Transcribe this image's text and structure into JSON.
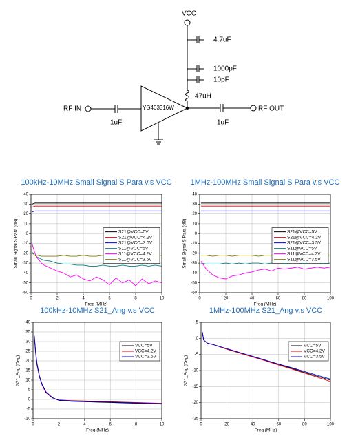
{
  "schematic": {
    "vcc": "VCC",
    "cap1": "4.7uF",
    "cap2": "1000pF",
    "cap3": "10pF",
    "inductor": "47uH",
    "rf_in": "RF IN",
    "cap_in": "1uF",
    "amp": "YG403316W",
    "cap_out": "1uF",
    "rf_out": "RF OUT"
  },
  "chart_data": [
    {
      "type": "line",
      "title": "100kHz-10MHz Small Signal S Para v.s VCC",
      "xlabel": "Freq (MHz)",
      "ylabel": "Small Signal S Para (dB)",
      "x": [
        0.1,
        0.3,
        0.5,
        0.8,
        1,
        1.5,
        2,
        2.5,
        3,
        3.5,
        4,
        4.5,
        5,
        5.5,
        6,
        6.5,
        7,
        7.5,
        8,
        8.5,
        9,
        9.5,
        10
      ],
      "series": [
        {
          "name": "S21@VCC=5V",
          "color": "#000000",
          "values": [
            30,
            31,
            31,
            31,
            31,
            31,
            31,
            31,
            31,
            31,
            31,
            31,
            31,
            31,
            31,
            31,
            31,
            31,
            31,
            31,
            31,
            31,
            31
          ]
        },
        {
          "name": "S21@VCC=4.2V",
          "color": "#e00000",
          "values": [
            27,
            28,
            28,
            28,
            28,
            28,
            28,
            28,
            28,
            28,
            28,
            28,
            28,
            28,
            28,
            28,
            28,
            28,
            28,
            28,
            28,
            28,
            28
          ]
        },
        {
          "name": "S21@VCC=3.5V",
          "color": "#0000e0",
          "values": [
            22,
            23,
            23,
            23,
            23,
            23,
            23,
            23,
            23,
            23,
            23,
            23,
            23,
            23,
            23,
            23,
            23,
            23,
            23,
            23,
            23,
            23,
            23
          ]
        },
        {
          "name": "S11@VCC=5V",
          "color": "#008080",
          "values": [
            -19,
            -22,
            -24,
            -26,
            -27,
            -28,
            -30,
            -31,
            -31,
            -32,
            -32,
            -33,
            -33,
            -32,
            -33,
            -33,
            -32,
            -33,
            -33,
            -32,
            -33,
            -32,
            -33
          ]
        },
        {
          "name": "S11@VCC=4.2V",
          "color": "#ff00ff",
          "values": [
            -11,
            -20,
            -25,
            -30,
            -32,
            -35,
            -38,
            -40,
            -44,
            -42,
            -46,
            -48,
            -44,
            -47,
            -52,
            -45,
            -50,
            -47,
            -53,
            -46,
            -51,
            -48,
            -50
          ]
        },
        {
          "name": "S11@VCC=3.5V",
          "color": "#808000",
          "values": [
            -20,
            -22,
            -22,
            -23,
            -23,
            -23,
            -23,
            -22,
            -23,
            -23,
            -22,
            -23,
            -23,
            -22,
            -23,
            -23,
            -22,
            -23,
            -23,
            -22,
            -23,
            -23,
            -22
          ]
        }
      ],
      "xlim": [
        0,
        10
      ],
      "ylim": [
        -60,
        40
      ],
      "xticks": [
        0,
        2,
        4,
        6,
        8,
        10
      ],
      "yticks": [
        -60,
        -50,
        -40,
        -30,
        -20,
        -10,
        0,
        10,
        20,
        30,
        40
      ],
      "grid": true,
      "legend": "center right"
    },
    {
      "type": "line",
      "title": "1MHz-100MHz Small Signal S Para v.s VCC",
      "xlabel": "Freq (MHz)",
      "ylabel": "Small Signal S Para (dB)",
      "x": [
        1,
        5,
        10,
        15,
        20,
        25,
        30,
        35,
        40,
        45,
        50,
        55,
        60,
        65,
        70,
        75,
        80,
        85,
        90,
        95,
        100
      ],
      "series": [
        {
          "name": "S21@VCC=5V",
          "color": "#000000",
          "values": [
            31,
            31,
            31,
            31,
            31,
            31,
            31,
            31,
            31,
            31,
            31,
            31,
            31,
            31,
            31,
            31,
            31,
            31,
            31,
            31,
            31
          ]
        },
        {
          "name": "S21@VCC=4.2V",
          "color": "#e00000",
          "values": [
            28,
            28,
            28,
            28,
            28,
            28,
            28,
            28,
            28,
            28,
            28,
            28,
            28,
            28,
            28,
            28,
            28,
            28,
            28,
            28,
            28
          ]
        },
        {
          "name": "S21@VCC=3.5V",
          "color": "#0000e0",
          "values": [
            23,
            23,
            23,
            23,
            23,
            23,
            23,
            23,
            23,
            23,
            23,
            23,
            23,
            23,
            23,
            23,
            23,
            23,
            23,
            23,
            23
          ]
        },
        {
          "name": "S11@VCC=5V",
          "color": "#008080",
          "values": [
            -30,
            -31,
            -31,
            -31,
            -30,
            -31,
            -30,
            -31,
            -30,
            -30,
            -31,
            -30,
            -30,
            -31,
            -30,
            -30,
            -31,
            -30,
            -30,
            -31,
            -30
          ]
        },
        {
          "name": "S11@VCC=4.2V",
          "color": "#ff00ff",
          "values": [
            -28,
            -36,
            -42,
            -45,
            -46,
            -43,
            -42,
            -40,
            -39,
            -37,
            -36,
            -38,
            -35,
            -36,
            -35,
            -34,
            -36,
            -35,
            -34,
            -35,
            -34
          ]
        },
        {
          "name": "S11@VCC=3.5V",
          "color": "#808000",
          "values": [
            -22,
            -22,
            -23,
            -22,
            -22,
            -23,
            -22,
            -22,
            -22,
            -23,
            -22,
            -22,
            -22,
            -23,
            -22,
            -22,
            -22,
            -23,
            -22,
            -22,
            -22
          ]
        }
      ],
      "xlim": [
        0,
        100
      ],
      "ylim": [
        -60,
        40
      ],
      "xticks": [
        0,
        20,
        40,
        60,
        80,
        100
      ],
      "yticks": [
        -60,
        -50,
        -40,
        -30,
        -20,
        -10,
        0,
        10,
        20,
        30,
        40
      ],
      "grid": true,
      "legend": "center right"
    },
    {
      "type": "line",
      "title": "100kHz-10MHz S21_Ang v.s VCC",
      "xlabel": "Freq (MHz)",
      "ylabel": "S21_Ang (Deg)",
      "x": [
        0.1,
        0.2,
        0.3,
        0.5,
        0.7,
        1,
        1.5,
        2,
        3,
        4,
        5,
        6,
        7,
        8,
        9,
        10
      ],
      "series": [
        {
          "name": "VCC=5V",
          "color": "#000000",
          "values": [
            33,
            25,
            19,
            12,
            8,
            4,
            1,
            -0.5,
            -1,
            -1.2,
            -1.4,
            -1.6,
            -1.8,
            -2,
            -2.2,
            -2.4
          ]
        },
        {
          "name": "VCC=4.2V",
          "color": "#e00000",
          "values": [
            32,
            24,
            18,
            11.5,
            7.5,
            3.5,
            0.8,
            -0.3,
            -0.6,
            -0.8,
            -1,
            -1.2,
            -1.4,
            -1.6,
            -1.8,
            -2
          ]
        },
        {
          "name": "VCC=3.5V",
          "color": "#0000e0",
          "values": [
            32.5,
            24.5,
            18.5,
            11.8,
            7.8,
            3.8,
            0.9,
            -0.4,
            -0.8,
            -1,
            -1.2,
            -1.4,
            -1.6,
            -1.8,
            -2,
            -2.2
          ]
        }
      ],
      "xlim": [
        0,
        10
      ],
      "ylim": [
        -10,
        40
      ],
      "xticks": [
        0,
        2,
        4,
        6,
        8,
        10
      ],
      "yticks": [
        -10,
        -5,
        0,
        5,
        10,
        15,
        20,
        25,
        30,
        35,
        40
      ],
      "grid": true,
      "legend": "upper right"
    },
    {
      "type": "line",
      "title": "1MHz-100MHz S21_Ang v.s VCC",
      "xlabel": "Freq (MHz)",
      "ylabel": "S21_Ang (Deg)",
      "x": [
        1,
        2,
        5,
        10,
        20,
        30,
        40,
        50,
        60,
        70,
        80,
        90,
        100
      ],
      "series": [
        {
          "name": "VCC=5V",
          "color": "#000000",
          "values": [
            2,
            -0.5,
            -1.5,
            -2,
            -3.3,
            -4.5,
            -5.7,
            -6.9,
            -8.1,
            -9.3,
            -10.6,
            -11.8,
            -13
          ]
        },
        {
          "name": "VCC=4.2V",
          "color": "#e00000",
          "values": [
            2,
            -0.5,
            -1.5,
            -2,
            -3.4,
            -4.6,
            -5.8,
            -7,
            -8.3,
            -9.5,
            -10.8,
            -12.1,
            -13.4
          ]
        },
        {
          "name": "VCC=3.5V",
          "color": "#0000e0",
          "values": [
            2,
            -0.5,
            -1.5,
            -2,
            -3.2,
            -4.4,
            -5.6,
            -6.8,
            -8,
            -9.1,
            -10.3,
            -11.5,
            -12.7
          ]
        }
      ],
      "xlim": [
        0,
        100
      ],
      "ylim": [
        -25,
        5
      ],
      "xticks": [
        0,
        20,
        40,
        60,
        80,
        100
      ],
      "yticks": [
        -25,
        -20,
        -15,
        -10,
        -5,
        0,
        5
      ],
      "grid": true,
      "legend": "upper right"
    }
  ]
}
